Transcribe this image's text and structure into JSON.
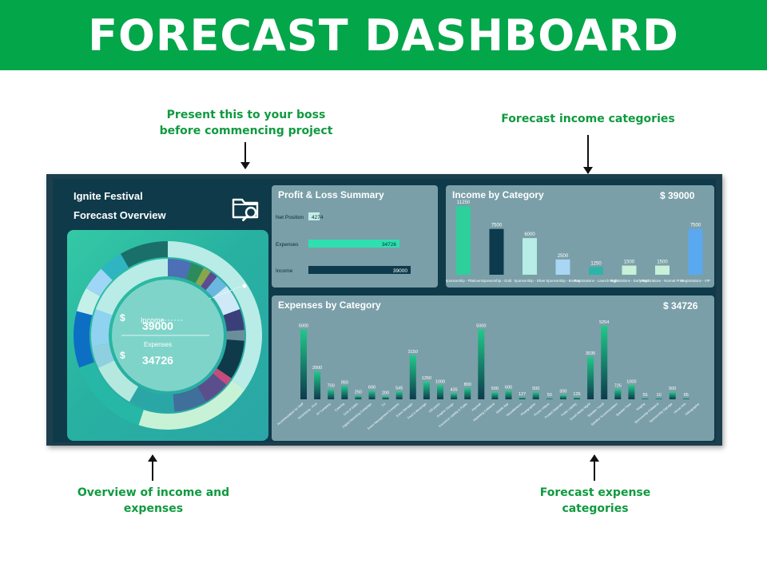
{
  "banner": {
    "title": "FORECAST DASHBOARD"
  },
  "notes": {
    "top_left": [
      "Present this to your boss",
      "before commencing project"
    ],
    "top_right": [
      "Forecast income categories"
    ],
    "bottom_left": [
      "Overview of income and",
      "expenses"
    ],
    "bottom_right": [
      "Forecast expense",
      "categories"
    ]
  },
  "dashboard": {
    "title_line1": "Ignite Festival",
    "title_line2": "Forecast Overview",
    "donut": {
      "currency": "$",
      "income_label": "Income",
      "income_value": "39000",
      "expenses_label": "Expenses",
      "expenses_value": "34726"
    },
    "pl_summary": {
      "title": "Profit & Loss Summary",
      "rows": [
        {
          "label": "Net Position",
          "value": 4274,
          "display": "4274"
        },
        {
          "label": "Expenses",
          "value": 34726,
          "display": "34726"
        },
        {
          "label": "Income",
          "value": 39000,
          "display": "39000"
        }
      ]
    },
    "income": {
      "title": "Income by Category",
      "total": "$ 39000"
    },
    "expenses": {
      "title": "Expenses by Category",
      "total": "$ 34726"
    }
  },
  "colors": {
    "green_banner": "#04a64a",
    "note_green": "#0f9a3f",
    "teal": "#2ecf9a",
    "navy": "#0d3a4c",
    "light_teal": "#b8ece6",
    "sky": "#9fd0f2",
    "blue": "#5aa9f0"
  },
  "chart_data": [
    {
      "type": "bar",
      "title": "Profit & Loss Summary",
      "categories": [
        "Net Position",
        "Expenses",
        "Income"
      ],
      "values": [
        4274,
        34726,
        39000
      ]
    },
    {
      "type": "bar",
      "title": "Income by Category",
      "categories": [
        "Sponsorship - Platinum",
        "Sponsorship - Gold",
        "Sponsorship - Silver",
        "Sponsorship - Bronze",
        "Registrations - Launch Night",
        "Registrations - Early Bird",
        "Registrations - Normal Price",
        "Registrations - VIP"
      ],
      "values": [
        11250,
        7500,
        6000,
        2500,
        1250,
        1500,
        1500,
        7500
      ],
      "colors": [
        "#2ecf9a",
        "#0d3a4c",
        "#b8ece6",
        "#a9d6f5",
        "#2bb5a8",
        "#c9f0d8",
        "#c9f0d8",
        "#5aa9f0"
      ]
    },
    {
      "type": "bar",
      "title": "Expenses by Category",
      "categories": [
        "Accommodation for Staff",
        "Advertising - Print",
        "AV Company",
        "Catering",
        "Cost of Sales",
        "Digital Marketing Campaign",
        "DJ",
        "Event Management Company",
        "Event Manager",
        "Food & Beverage",
        "Gift packs",
        "Graphic Design",
        "Insurance Liability & Public",
        "Keynote",
        "Marketing Collateral",
        "Mobile App",
        "Miscellaneous",
        "Photographer",
        "Promo Videos",
        "Printed Materials",
        "Public Liability",
        "Social Media Mgmt",
        "Speaker Travel",
        "Speaker Accommodation",
        "Speaker Fees",
        "Staging",
        "Sponsorship Collateral",
        "Sponsorship Signage",
        "Venue Hire",
        "Videographer"
      ],
      "values": [
        5000,
        2000,
        700,
        950,
        250,
        600,
        200,
        545,
        3150,
        1250,
        1000,
        435,
        800,
        5000,
        500,
        600,
        127,
        500,
        50,
        300,
        125,
        3035,
        5254,
        725,
        1000,
        55,
        10,
        500,
        65,
        0
      ]
    }
  ]
}
